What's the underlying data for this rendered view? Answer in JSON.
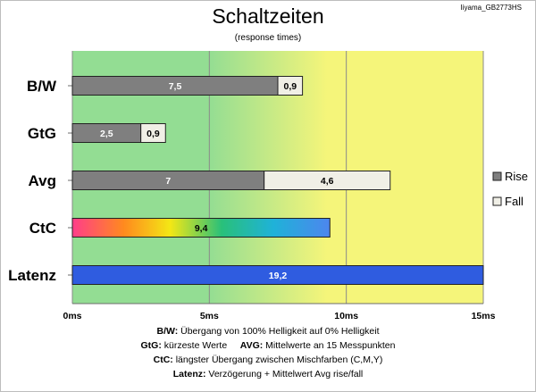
{
  "header": {
    "title": "Schaltzeiten",
    "subtitle": "(response times)",
    "tag": "Iiyama_GB2773HS"
  },
  "chart_data": {
    "type": "bar",
    "orientation": "horizontal",
    "stacked": true,
    "categories": [
      "B/W",
      "GtG",
      "Avg",
      "CtC",
      "Latenz"
    ],
    "series": [
      {
        "name": "Rise",
        "color": "#7f7f7f",
        "values": [
          7.5,
          2.5,
          7,
          null,
          null
        ]
      },
      {
        "name": "Fall",
        "color": "#f0efe6",
        "values": [
          0.9,
          0.9,
          4.6,
          null,
          null
        ]
      }
    ],
    "single_values": {
      "CtC": {
        "value": 9.4,
        "style": "rainbow"
      },
      "Latenz": {
        "value": 19.2,
        "color": "#2f5ce0"
      }
    },
    "data_labels": {
      "B/W": [
        "7,5",
        "0,9"
      ],
      "GtG": [
        "2,5",
        "0,9"
      ],
      "Avg": [
        "7",
        "4,6"
      ],
      "CtC": [
        "9,4"
      ],
      "Latenz": [
        "19,2"
      ]
    },
    "xlim": [
      0,
      15
    ],
    "xticks": [
      0,
      5,
      10,
      15
    ],
    "xtick_labels": [
      "0ms",
      "5ms",
      "10ms",
      "15ms"
    ],
    "grid": true,
    "background_colors": [
      "#93dd93",
      "#f5f57a"
    ],
    "legend": {
      "placement": "right",
      "entries": [
        "Rise",
        "Fall"
      ]
    }
  },
  "notes": [
    {
      "label": "B/W:",
      "text": " Übergang von 100% Helligkeit auf 0% Helligkeit"
    },
    {
      "label": "GtG:",
      "text": " kürzeste  Werte",
      "label2": "AVG:",
      "text2": " Mittelwerte an 15 Messpunkten"
    },
    {
      "label": "CtC:",
      "text": " längster Übergang  zwischen Mischfarben  (C,M,Y)"
    },
    {
      "label": "Latenz:",
      "text": " Verzögerung  + Mittelwert Avg rise/fall"
    }
  ]
}
